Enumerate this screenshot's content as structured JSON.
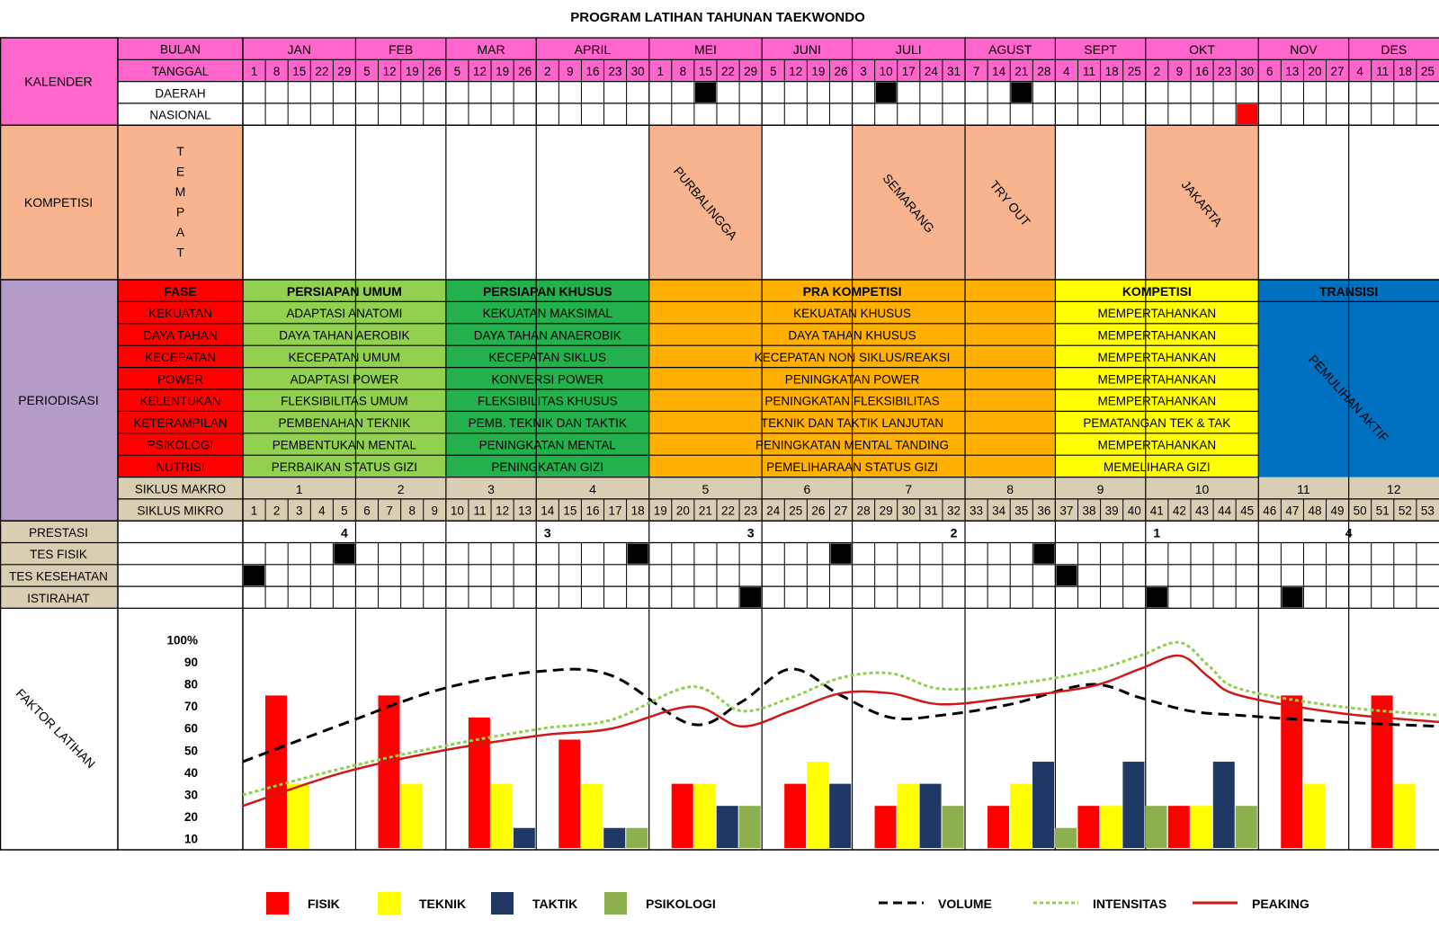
{
  "title": "PROGRAM LATIHAN TAHUNAN TAEKWONDO",
  "colors": {
    "pink": "#ff66cc",
    "peach": "#f7b48e",
    "lavender": "#b39cc7",
    "tan": "#d8ceb2",
    "red": "#ff0000",
    "light_green": "#92d050",
    "green": "#22b14c",
    "orange": "#ffb000",
    "yellow": "#ffff00",
    "blue": "#0070c0",
    "navy": "#1f3864",
    "olive": "#8db04e",
    "mark": "#000000"
  },
  "sections": {
    "kalender": "KALENDER",
    "kompetisi": "KOMPETISI",
    "periodisasi": "PERIODISASI",
    "faktor": "FAKTOR LATIHAN"
  },
  "calendar": {
    "bulan_label": "BULAN",
    "tanggal_label": "TANGGAL",
    "daerah_label": "DAERAH",
    "nasional_label": "NASIONAL",
    "months": [
      {
        "name": "JAN",
        "weeks": 5
      },
      {
        "name": "FEB",
        "weeks": 4
      },
      {
        "name": "MAR",
        "weeks": 4
      },
      {
        "name": "APRIL",
        "weeks": 5
      },
      {
        "name": "MEI",
        "weeks": 5
      },
      {
        "name": "JUNI",
        "weeks": 4
      },
      {
        "name": "JULI",
        "weeks": 5
      },
      {
        "name": "AGUST",
        "weeks": 4
      },
      {
        "name": "SEPT",
        "weeks": 4
      },
      {
        "name": "OKT",
        "weeks": 5
      },
      {
        "name": "NOV",
        "weeks": 4
      },
      {
        "name": "DES",
        "weeks": 4
      }
    ],
    "dates": [
      "1",
      "8",
      "15",
      "22",
      "29",
      "5",
      "12",
      "19",
      "26",
      "5",
      "12",
      "19",
      "26",
      "2",
      "9",
      "16",
      "23",
      "30",
      "1",
      "8",
      "15",
      "22",
      "29",
      "5",
      "12",
      "19",
      "26",
      "3",
      "10",
      "17",
      "24",
      "31",
      "7",
      "14",
      "21",
      "28",
      "4",
      "11",
      "18",
      "25",
      "2",
      "9",
      "16",
      "23",
      "30",
      "6",
      "13",
      "20",
      "27",
      "4",
      "11",
      "18",
      "25"
    ],
    "daerah_marks": [
      20,
      28,
      34
    ],
    "nasional_marks": [
      44
    ]
  },
  "kompetisi": {
    "tempat_label": "TEMPAT",
    "events": [
      {
        "label": "PURBALINGGA",
        "month": 4
      },
      {
        "label": "SEMARANG",
        "month": 6
      },
      {
        "label": "TRY OUT",
        "month": 7
      },
      {
        "label": "JAKARTA",
        "month": 9
      }
    ]
  },
  "periodisasi": {
    "fase_label": "FASE",
    "factors": [
      "KEKUATAN",
      "DAYA TAHAN",
      "KECEPATAN",
      "POWER",
      "KELENTUKAN",
      "KETERAMPILAN",
      "PSIKOLOGI",
      "NUTRISI"
    ],
    "phases": [
      {
        "name": "PERSIAPAN UMUM",
        "color": "#92d050",
        "name_color": "#000000",
        "months": [
          0,
          1
        ],
        "items": [
          "ADAPTASI ANATOMI",
          "DAYA TAHAN AEROBIK",
          "KECEPATAN UMUM",
          "ADAPTASI POWER",
          "FLEKSIBILITAS UMUM",
          "PEMBENAHAN TEKNIK",
          "PEMBENTUKAN MENTAL",
          "PERBAIKAN STATUS GIZI"
        ]
      },
      {
        "name": "PERSIAPAN KHUSUS",
        "color": "#22b14c",
        "name_color": "#000000",
        "months": [
          2,
          3
        ],
        "items": [
          "KEKUATAN MAKSIMAL",
          "DAYA TAHAN ANAEROBIK",
          "KECEPATAN SIKLUS",
          "KONVERSI POWER",
          "FLEKSIBILITAS KHUSUS",
          "PEMB. TEKNIK DAN TAKTIK",
          "PENINGKATAN MENTAL",
          "PENINGKATAN GIZI"
        ]
      },
      {
        "name": "PRA KOMPETISI",
        "color": "#ffb000",
        "name_color": "#000000",
        "months": [
          4,
          7
        ],
        "items": [
          "KEKUATAN KHUSUS",
          "DAYA TAHAN KHUSUS",
          "KECEPATAN NON SIKLUS/REAKSI",
          "PENINGKATAN POWER",
          "PENINGKATAN FLEKSIBILITAS",
          "TEKNIK DAN TAKTIK LANJUTAN",
          "PENINGKATAN MENTAL TANDING",
          "PEMELIHARAAN STATUS GIZI"
        ]
      },
      {
        "name": "KOMPETISI",
        "color": "#ffff00",
        "name_color": "#000000",
        "months": [
          8,
          9
        ],
        "items": [
          "MEMPERTAHANKAN",
          "MEMPERTAHANKAN",
          "MEMPERTAHANKAN",
          "MEMPERTAHANKAN",
          "MEMPERTAHANKAN",
          "PEMATANGAN TEK & TAK",
          "MEMPERTAHANKAN",
          "MEMELIHARA GIZI"
        ]
      },
      {
        "name": "TRANSISI",
        "color": "#0070c0",
        "name_color": "#000000",
        "months": [
          10,
          11
        ],
        "items": [],
        "merged_label": "PEMULIHAN AKTIF"
      }
    ]
  },
  "siklus": {
    "makro_label": "SIKLUS MAKRO",
    "mikro_label": "SIKLUS MIKRO",
    "makro": [
      "1",
      "2",
      "3",
      "4",
      "5",
      "6",
      "7",
      "8",
      "9",
      "10",
      "11",
      "12"
    ],
    "mikro": [
      "1",
      "2",
      "3",
      "4",
      "5",
      "6",
      "7",
      "8",
      "9",
      "10",
      "11",
      "12",
      "13",
      "14",
      "15",
      "16",
      "17",
      "18",
      "19",
      "20",
      "21",
      "22",
      "23",
      "24",
      "25",
      "26",
      "27",
      "28",
      "29",
      "30",
      "31",
      "32",
      "33",
      "34",
      "35",
      "36",
      "37",
      "38",
      "39",
      "40",
      "41",
      "42",
      "43",
      "44",
      "45",
      "46",
      "47",
      "48",
      "49",
      "50",
      "51",
      "52",
      "53"
    ]
  },
  "tracking": {
    "prestasi_label": "PRESTASI",
    "prestasi": [
      {
        "value": "4",
        "months": [
          0,
          1
        ]
      },
      {
        "value": "3",
        "months": [
          2,
          3
        ]
      },
      {
        "value": "3",
        "months": [
          4,
          5
        ]
      },
      {
        "value": "2",
        "months": [
          6,
          7
        ]
      },
      {
        "value": "1",
        "months": [
          8,
          9
        ]
      },
      {
        "value": "4",
        "months": [
          10,
          11
        ]
      }
    ],
    "rows": [
      {
        "label": "TES FISIK",
        "marks": [
          4,
          17,
          26,
          35
        ]
      },
      {
        "label": "TES KESEHATAN",
        "marks": [
          0,
          36
        ]
      },
      {
        "label": "ISTIRAHAT",
        "marks": [
          22,
          40,
          46
        ]
      }
    ]
  },
  "chart_data": {
    "type": "bar",
    "title": "FAKTOR LATIHAN",
    "ylabel": "FAKTOR LATIHAN",
    "ylim": [
      10,
      100
    ],
    "yticks": [
      "10",
      "20",
      "30",
      "40",
      "50",
      "60",
      "70",
      "80",
      "90",
      "100%"
    ],
    "categories": [
      "JAN",
      "FEB",
      "MAR",
      "APRIL",
      "MEI",
      "JUNI",
      "JULI",
      "AGUST",
      "SEPT",
      "OKT",
      "NOV",
      "DES"
    ],
    "series": [
      {
        "name": "FISIK",
        "color": "#ff0000",
        "values": [
          75,
          75,
          65,
          55,
          35,
          35,
          25,
          25,
          25,
          25,
          75,
          75
        ]
      },
      {
        "name": "TEKNIK",
        "color": "#ffff00",
        "values": [
          35,
          35,
          35,
          35,
          35,
          45,
          35,
          35,
          25,
          25,
          35,
          35
        ]
      },
      {
        "name": "TAKTIK",
        "color": "#1f3864",
        "values": [
          null,
          null,
          15,
          15,
          25,
          35,
          35,
          45,
          45,
          45,
          null,
          null
        ]
      },
      {
        "name": "PSIKOLOGI",
        "color": "#8db04e",
        "values": [
          null,
          null,
          null,
          15,
          25,
          null,
          25,
          15,
          25,
          25,
          null,
          null
        ]
      }
    ],
    "lines": [
      {
        "name": "VOLUME",
        "color": "#000000",
        "style": "dashed",
        "x": [
          0,
          1,
          2,
          3,
          3.7,
          4.5,
          5,
          5.5,
          6,
          6.5,
          7,
          7.7,
          8.5,
          9,
          9.5,
          10,
          11,
          12
        ],
        "y": [
          45,
          62,
          78,
          86,
          84,
          62,
          72,
          87,
          75,
          65,
          66,
          71,
          80,
          74,
          68,
          66,
          63,
          61
        ]
      },
      {
        "name": "INTENSITAS",
        "color": "#8fd14f",
        "style": "dotted",
        "x": [
          0,
          1,
          2,
          3,
          3.7,
          4.5,
          5,
          5.5,
          6,
          6.5,
          7,
          7.7,
          8.5,
          9,
          9.4,
          9.7,
          10,
          11,
          12
        ],
        "y": [
          30,
          42,
          52,
          60,
          64,
          79,
          68,
          74,
          83,
          85,
          78,
          80,
          86,
          93,
          99,
          88,
          78,
          70,
          66
        ]
      },
      {
        "name": "PEAKING",
        "color": "#d01818",
        "style": "solid",
        "x": [
          0,
          1,
          2,
          3,
          3.7,
          4.5,
          5,
          5.5,
          6,
          6.5,
          7,
          7.7,
          8.5,
          9,
          9.4,
          9.7,
          10,
          11,
          12
        ],
        "y": [
          25,
          40,
          50,
          57,
          60,
          70,
          61,
          68,
          76,
          76,
          71,
          74,
          79,
          87,
          93,
          83,
          75,
          67,
          63
        ]
      }
    ],
    "legend": [
      "FISIK",
      "TEKNIK",
      "TAKTIK",
      "PSIKOLOGI",
      "VOLUME",
      "INTENSITAS",
      "PEAKING"
    ],
    "legend_position": "bottom"
  }
}
